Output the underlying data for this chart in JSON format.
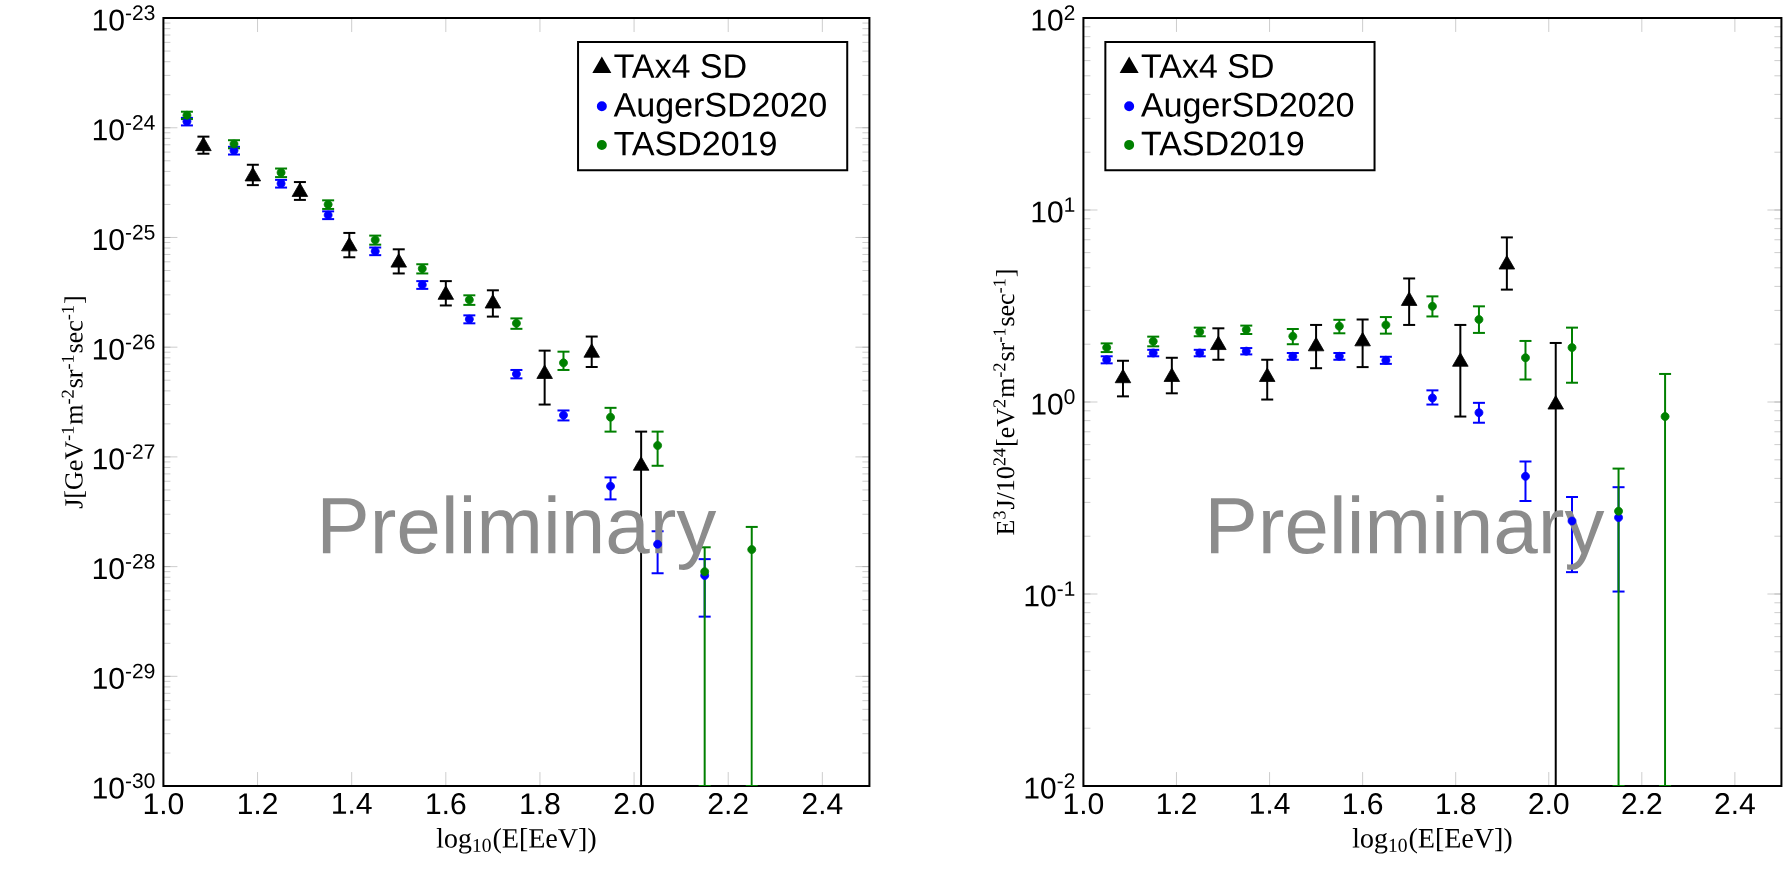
{
  "chart_data": [
    {
      "type": "scatter",
      "xlabel": "log$_{10}$(E[EeV])",
      "ylabel": "J[GeV$^{-1}$m$^{-2}$sr$^{-1}$sec$^{-1}$]",
      "log": "y",
      "legend": "top right",
      "annotations": [
        "Preliminary"
      ],
      "xlim": [
        1.0,
        2.5
      ],
      "ylim": [
        1e-30,
        1e-23
      ],
      "xticks": [
        {
          "value": 1.0,
          "label": "1.0"
        },
        {
          "value": 1.2,
          "label": "1.2"
        },
        {
          "value": 1.4,
          "label": "1.4"
        },
        {
          "value": 1.6,
          "label": "1.6"
        },
        {
          "value": 1.8,
          "label": "1.8"
        },
        {
          "value": 2.0,
          "label": "2.0"
        },
        {
          "value": 2.2,
          "label": "2.2"
        },
        {
          "value": 2.4,
          "label": "2.4"
        }
      ],
      "yticks": [
        {
          "value": 1e-30,
          "label": "10$^{-30}$"
        },
        {
          "value": 1e-29,
          "label": "10$^{-29}$"
        },
        {
          "value": 1e-28,
          "label": "10$^{-28}$"
        },
        {
          "value": 1e-27,
          "label": "10$^{-27}$"
        },
        {
          "value": 1e-26,
          "label": "10$^{-26}$"
        },
        {
          "value": 1e-25,
          "label": "10$^{-25}$"
        },
        {
          "value": 1e-24,
          "label": "10$^{-24}$"
        },
        {
          "value": 1e-23,
          "label": "10$^{-23}$"
        }
      ],
      "series": [
        {
          "name": "TAx4 SD",
          "color": "#000000",
          "marker": "triangle",
          "x": [
            1.085,
            1.19,
            1.29,
            1.395,
            1.5,
            1.6,
            1.7,
            1.81,
            1.91,
            2.015
          ],
          "values": [
            6.8e-25,
            3.6e-25,
            2.6e-25,
            8.3e-26,
            5.9e-26,
            3e-26,
            2.5e-26,
            5.7e-27,
            8.9e-27,
            8.3e-28
          ],
          "errors": [
            [
              5.8e-25,
              8.3e-25
            ],
            [
              3e-25,
              4.6e-25
            ],
            [
              2.2e-25,
              3.2e-25
            ],
            [
              6.6e-26,
              1.1e-25
            ],
            [
              4.7e-26,
              7.8e-26
            ],
            [
              2.4e-26,
              4e-26
            ],
            [
              1.9e-26,
              3.3e-26
            ],
            [
              3e-27,
              9.3e-27
            ],
            [
              6.6e-27,
              1.25e-26
            ],
            [
              1e-30,
              1.7e-27
            ]
          ]
        },
        {
          "name": "AugerSD2020",
          "color": "#0000ff",
          "marker": "circle",
          "x": [
            1.05,
            1.15,
            1.25,
            1.35,
            1.45,
            1.55,
            1.65,
            1.75,
            1.85,
            1.95,
            2.05,
            2.15
          ],
          "values": [
            1.14e-24,
            6.2e-25,
            3.1e-25,
            1.6e-25,
            7.5e-26,
            3.7e-26,
            1.8e-26,
            5.7e-27,
            2.4e-27,
            5.4e-28,
            1.6e-28,
            8.3e-29
          ],
          "errors": [
            9e-26,
            5e-26,
            2.5e-26,
            1.3e-26,
            6e-27,
            3e-27,
            1.5e-27,
            5e-28,
            2.5e-28,
            [
              4.1e-28,
              6.5e-28
            ],
            [
              8.7e-29,
              2.1e-28
            ],
            [
              3.5e-29,
              1.17e-28
            ]
          ]
        },
        {
          "name": "TASD2019",
          "color": "#008000",
          "marker": "circle",
          "x": [
            1.05,
            1.15,
            1.25,
            1.35,
            1.45,
            1.55,
            1.65,
            1.75,
            1.85,
            1.95,
            2.05,
            2.15,
            2.25
          ],
          "values": [
            1.3e-24,
            7.1e-25,
            3.9e-25,
            2e-25,
            9.5e-26,
            5.2e-26,
            2.7e-26,
            1.65e-26,
            7.2e-27,
            2.3e-27,
            1.27e-27,
            9e-29,
            1.43e-28
          ],
          "errors": [
            1e-25,
            6e-26,
            3.5e-26,
            1.8e-26,
            9e-27,
            5e-27,
            2.7e-27,
            1.8e-27,
            [
              6.2e-27,
              9.1e-27
            ],
            [
              1.7e-27,
              2.8e-27
            ],
            [
              8.3e-28,
              1.7e-27
            ],
            [
              1e-30,
              1.5e-28
            ],
            [
              1e-30,
              2.3e-28
            ]
          ]
        }
      ]
    },
    {
      "type": "scatter",
      "xlabel": "log$_{10}$(E[EeV])",
      "ylabel": "E$^{3}$J/10$^{24}$[eV$^{2}$m$^{-2}$sr$^{-1}$sec$^{-1}$]",
      "log": "y",
      "legend": "top left",
      "annotations": [
        "Preliminary"
      ],
      "xlim": [
        1.0,
        2.5
      ],
      "ylim": [
        0.01,
        100
      ],
      "xticks": [
        {
          "value": 1.0,
          "label": "1.0"
        },
        {
          "value": 1.2,
          "label": "1.2"
        },
        {
          "value": 1.4,
          "label": "1.4"
        },
        {
          "value": 1.6,
          "label": "1.6"
        },
        {
          "value": 1.8,
          "label": "1.8"
        },
        {
          "value": 2.0,
          "label": "2.0"
        },
        {
          "value": 2.2,
          "label": "2.2"
        },
        {
          "value": 2.4,
          "label": "2.4"
        }
      ],
      "yticks": [
        {
          "value": 0.01,
          "label": "10$^{-2}$"
        },
        {
          "value": 0.1,
          "label": "10$^{-1}$"
        },
        {
          "value": 1,
          "label": "10$^{0}$"
        },
        {
          "value": 10,
          "label": "10$^{1}$"
        },
        {
          "value": 100,
          "label": "10$^{2}$"
        }
      ],
      "series": [
        {
          "name": "TAx4 SD",
          "color": "#000000",
          "marker": "triangle",
          "x": [
            1.085,
            1.19,
            1.29,
            1.395,
            1.5,
            1.6,
            1.7,
            1.81,
            1.91,
            2.015
          ],
          "values": [
            1.33,
            1.35,
            1.98,
            1.35,
            1.95,
            2.07,
            3.36,
            1.62,
            5.2,
            0.97
          ],
          "errors": [
            [
              1.07,
              1.64
            ],
            [
              1.11,
              1.7
            ],
            [
              1.66,
              2.42
            ],
            [
              1.03,
              1.66
            ],
            [
              1.5,
              2.52
            ],
            [
              1.52,
              2.69
            ],
            [
              2.52,
              4.4
            ],
            [
              0.84,
              2.52
            ],
            [
              3.85,
              7.2
            ],
            [
              0.01,
              2.03
            ]
          ]
        },
        {
          "name": "AugerSD2020",
          "color": "#0000ff",
          "marker": "circle",
          "x": [
            1.05,
            1.15,
            1.25,
            1.35,
            1.45,
            1.55,
            1.65,
            1.75,
            1.85,
            1.95,
            2.05,
            2.15
          ],
          "values": [
            1.66,
            1.8,
            1.8,
            1.84,
            1.73,
            1.73,
            1.65,
            1.05,
            0.88,
            0.41,
            0.24,
            0.25
          ],
          "errors": [
            0.07,
            0.07,
            0.07,
            0.07,
            0.07,
            0.07,
            0.07,
            [
              0.97,
              1.15
            ],
            [
              0.78,
              0.99
            ],
            [
              0.305,
              0.49
            ],
            [
              0.13,
              0.32
            ],
            [
              0.103,
              0.36
            ]
          ]
        },
        {
          "name": "TASD2019",
          "color": "#008000",
          "marker": "circle",
          "x": [
            1.05,
            1.15,
            1.25,
            1.35,
            1.45,
            1.55,
            1.65,
            1.75,
            1.85,
            1.95,
            2.05,
            2.15,
            2.25
          ],
          "values": [
            1.92,
            2.07,
            2.32,
            2.38,
            2.2,
            2.48,
            2.52,
            3.15,
            2.69,
            1.7,
            1.92,
            0.27,
            0.84
          ],
          "errors": [
            0.1,
            0.12,
            0.12,
            0.12,
            0.2,
            0.2,
            0.25,
            [
              2.79,
              3.55
            ],
            [
              2.29,
              3.15
            ],
            [
              1.31,
              2.08
            ],
            [
              1.26,
              2.44
            ],
            [
              0.01,
              0.45
            ],
            [
              0.01,
              1.4
            ]
          ]
        }
      ]
    }
  ]
}
